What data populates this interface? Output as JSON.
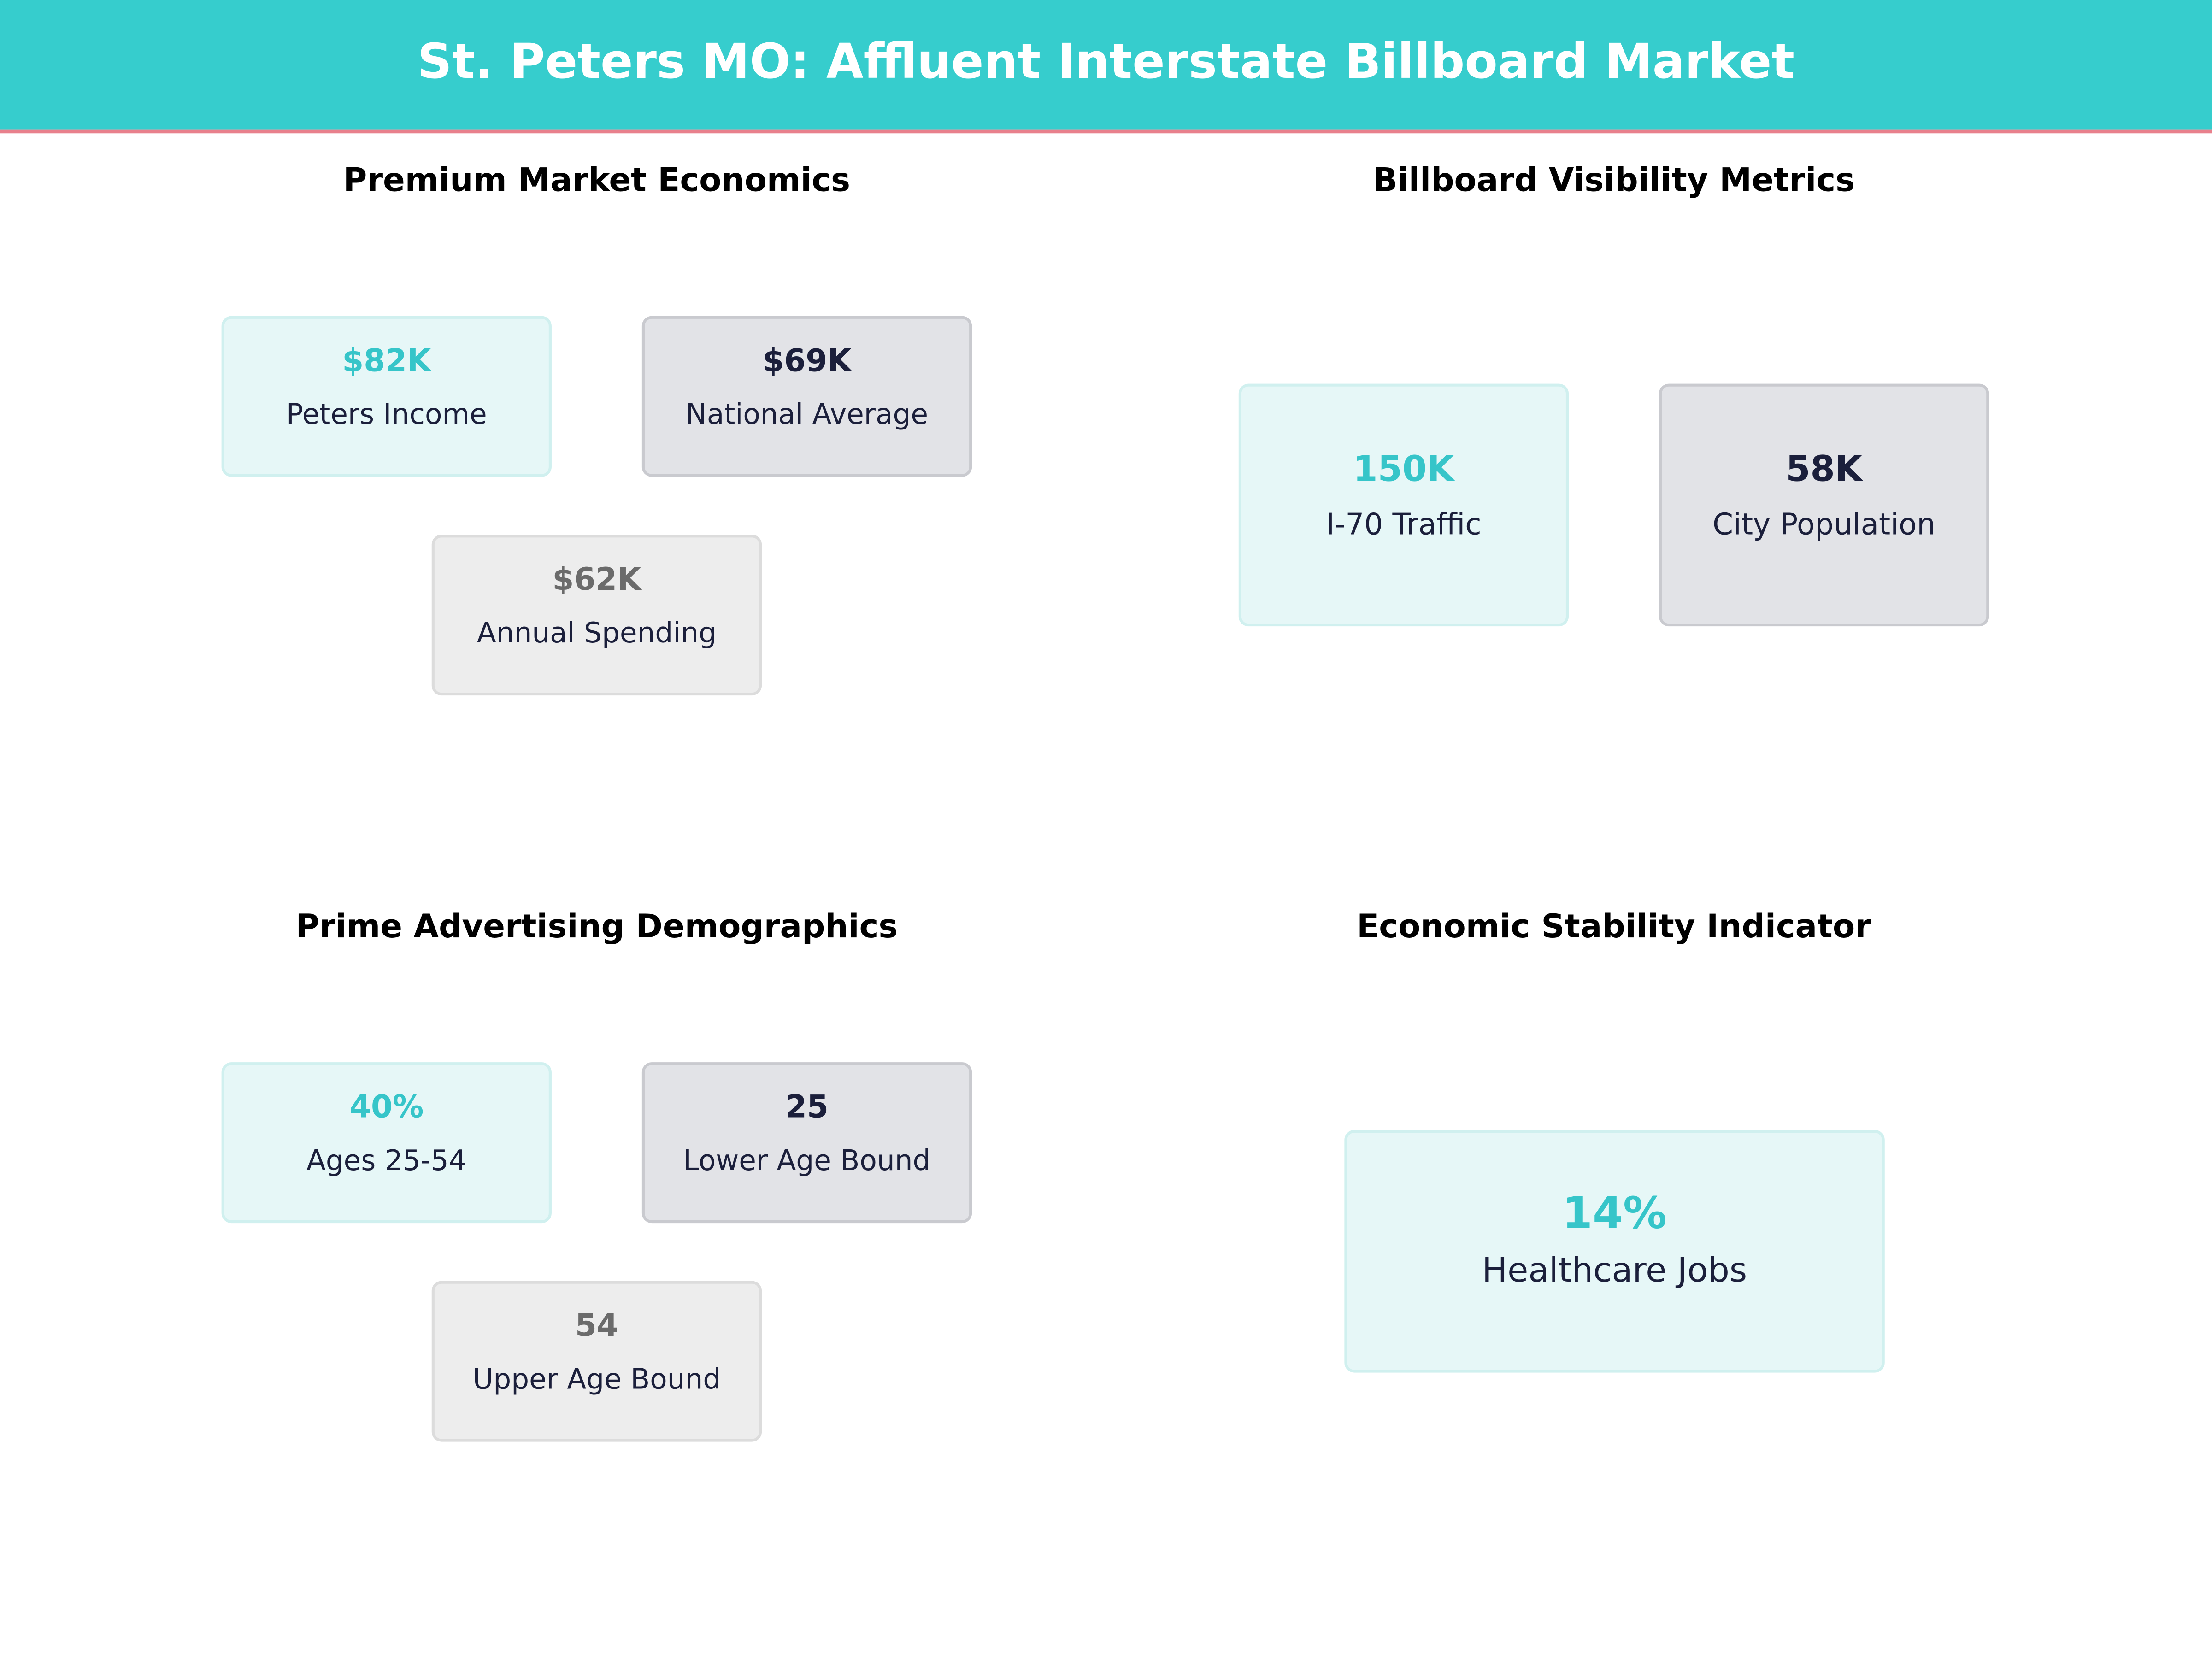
{
  "header": {
    "title": "St. Peters MO: Affluent Interstate Billboard Market"
  },
  "panels": [
    {
      "title": "Premium Market Economics",
      "cards": [
        {
          "value": "$82K",
          "label": "Peters Income"
        },
        {
          "value": "$69K",
          "label": "National Average"
        },
        {
          "value": "$62K",
          "label": "Annual Spending"
        }
      ]
    },
    {
      "title": "Billboard Visibility Metrics",
      "cards": [
        {
          "value": "150K",
          "label": "I-70 Traffic"
        },
        {
          "value": "58K",
          "label": "City Population"
        }
      ]
    },
    {
      "title": "Prime Advertising Demographics",
      "cards": [
        {
          "value": "40%",
          "label": "Ages 25-54"
        },
        {
          "value": "25",
          "label": "Lower Age Bound"
        },
        {
          "value": "54",
          "label": "Upper Age Bound"
        }
      ]
    },
    {
      "title": "Economic Stability Indicator",
      "cards": [
        {
          "value": "14%",
          "label": "Healthcare Jobs"
        }
      ]
    }
  ]
}
